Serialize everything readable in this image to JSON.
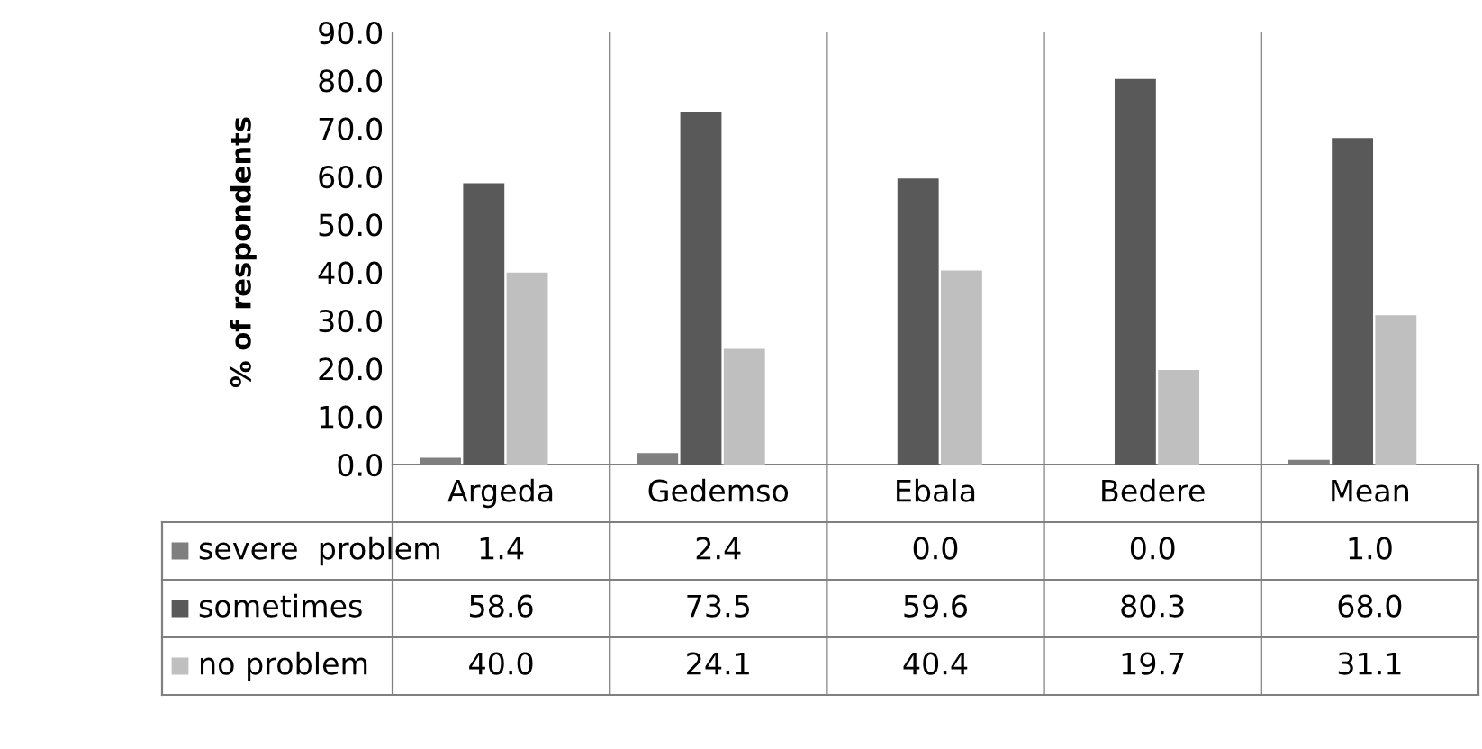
{
  "chart_data": {
    "type": "bar",
    "ylabel": "% of respondents",
    "categories": [
      "Argeda",
      "Gedemso",
      "Ebala",
      "Bedere",
      "Mean"
    ],
    "series": [
      {
        "name": "severe  problem",
        "color": "#7f7f7f",
        "values": [
          1.4,
          2.4,
          0.0,
          0.0,
          1.0
        ],
        "value_labels": [
          "1.4",
          "2.4",
          "0.0",
          "0.0",
          "1.0"
        ]
      },
      {
        "name": "sometimes",
        "color": "#595959",
        "values": [
          58.6,
          73.5,
          59.6,
          80.3,
          68.0
        ],
        "value_labels": [
          "58.6",
          "73.5",
          "59.6",
          "80.3",
          "68.0"
        ]
      },
      {
        "name": "no problem",
        "color": "#bfbfbf",
        "values": [
          40.0,
          24.1,
          40.4,
          19.7,
          31.1
        ],
        "value_labels": [
          "40.0",
          "24.1",
          "40.4",
          "19.7",
          "31.1"
        ]
      }
    ],
    "ylim": [
      0,
      90
    ],
    "yticks": [
      {
        "value": 0,
        "label": "0.0"
      },
      {
        "value": 10,
        "label": "10.0"
      },
      {
        "value": 20,
        "label": "20.0"
      },
      {
        "value": 30,
        "label": "30.0"
      },
      {
        "value": 40,
        "label": "40.0"
      },
      {
        "value": 50,
        "label": "50.0"
      },
      {
        "value": 60,
        "label": "60.0"
      },
      {
        "value": 70,
        "label": "70.0"
      },
      {
        "value": 80,
        "label": "80.0"
      },
      {
        "value": 90,
        "label": "90.0"
      }
    ],
    "grid": false,
    "legend": "bottom"
  }
}
